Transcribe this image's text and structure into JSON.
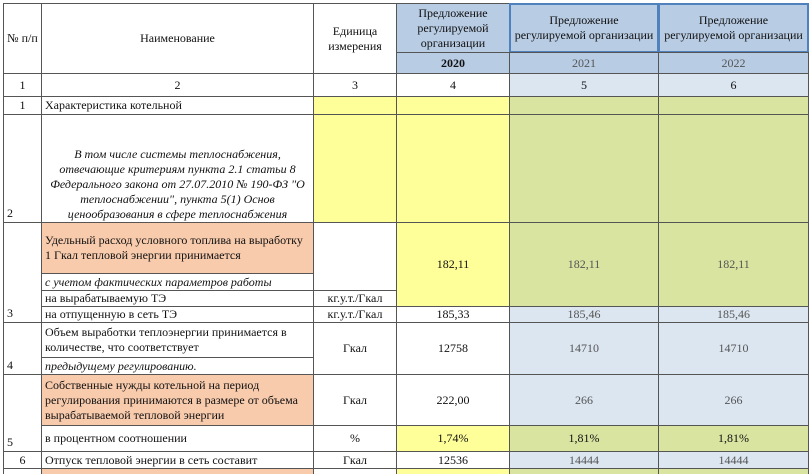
{
  "header": {
    "col_num": "№ п/п",
    "name": "Наименование",
    "unit": "Единица измерения",
    "proposals": [
      "Предложение регулируемой организации",
      "Предложение регулируемой организации",
      "Предложение регулируемой организации"
    ],
    "years": [
      "2020",
      "2021",
      "2022"
    ]
  },
  "column_numbers": [
    "1",
    "2",
    "3",
    "4",
    "5",
    "6"
  ],
  "rows": [
    {
      "num": "1",
      "name": "Характеристика котельной"
    },
    {
      "num": "2",
      "name": "В том числе системы теплоснабжения, отвечающие критериям пункта 2.1 статьи 8 Федерального закона от 27.07.2010 № 190-ФЗ \"О теплоснабжении\", пункта 5(1) Основ ценообразования в сфере теплоснабжения"
    },
    {
      "num": "3",
      "name": "Удельный расход условного топлива на выработку 1 Гкал тепловой энергии принимается",
      "sub": [
        "с учетом фактических параметров работы",
        "на вырабатываемую ТЭ",
        "на отпущенную в сеть ТЭ"
      ],
      "units": [
        "кг.у.т./Гкал",
        "кг.у.т./Гкал"
      ],
      "values": [
        "182,11",
        "182,11",
        "182,11"
      ],
      "values2": [
        "185,33",
        "185,46",
        "185,46"
      ]
    },
    {
      "num": "4",
      "name": "Объем выработки теплоэнергии принимается в количестве, что соответствует",
      "sub": "предыдущему регулированию.",
      "unit": "Гкал",
      "values": [
        "12758",
        "14710",
        "14710"
      ]
    },
    {
      "num": "5",
      "name": "Собственные нужды котельной на период регулирования принимаются в размере от объема вырабатываемой тепловой энергии",
      "unit": "Гкал",
      "values": [
        "222,00",
        "266",
        "266"
      ],
      "sub": "в процентном соотношении",
      "unit2": "%",
      "values2": [
        "1,74%",
        "1,81%",
        "1,81%"
      ]
    },
    {
      "num": "6",
      "name": "Отпуск тепловой энергии в сеть составит",
      "unit": "Гкал",
      "values": [
        "12536",
        "14444",
        "14444"
      ]
    }
  ]
}
